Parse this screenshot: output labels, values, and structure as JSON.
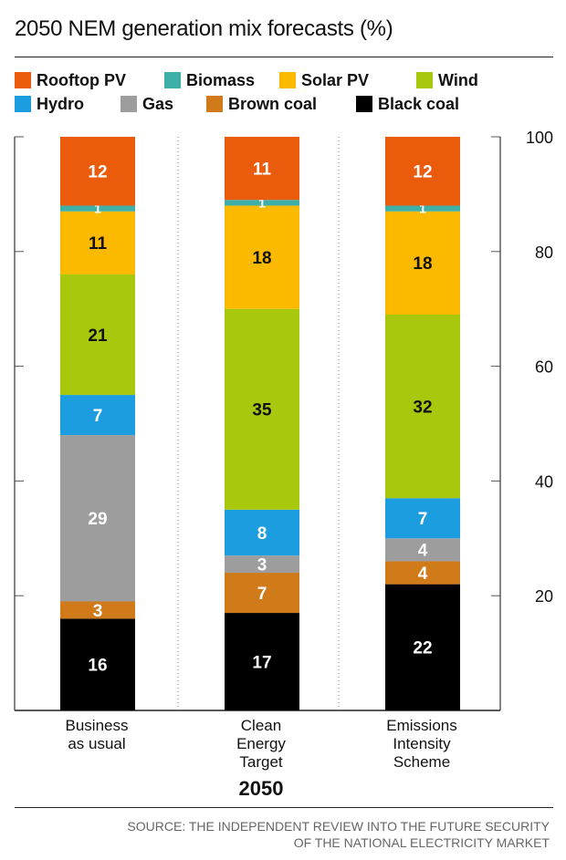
{
  "chart_data": {
    "type": "bar",
    "stacked": true,
    "title": "2050 NEM generation mix forecasts (%)",
    "categories": [
      "Business\nas usual",
      "Clean\nEnergy\nTarget",
      "Emissions\nIntensity\nScheme"
    ],
    "group_label": "2050",
    "ylim": [
      0,
      100
    ],
    "yticks": [
      "20",
      "40",
      "60",
      "80",
      "100"
    ],
    "ytick_values": [
      20,
      40,
      60,
      80,
      100
    ],
    "grid": true,
    "legend_position": "top",
    "series": [
      {
        "name": "Black coal",
        "color": "#000000",
        "label_color": "#ffffff",
        "values": [
          16,
          17,
          22
        ]
      },
      {
        "name": "Brown coal",
        "color": "#d07a1a",
        "label_color": "#ffffff",
        "values": [
          3,
          7,
          4
        ]
      },
      {
        "name": "Gas",
        "color": "#9d9d9d",
        "label_color": "#ffffff",
        "values": [
          29,
          3,
          4
        ]
      },
      {
        "name": "Hydro",
        "color": "#1c9de0",
        "label_color": "#ffffff",
        "values": [
          7,
          8,
          7
        ]
      },
      {
        "name": "Wind",
        "color": "#a8c80e",
        "label_color": "#111111",
        "values": [
          21,
          35,
          32
        ]
      },
      {
        "name": "Solar PV",
        "color": "#fbba00",
        "label_color": "#111111",
        "values": [
          11,
          18,
          18
        ]
      },
      {
        "name": "Biomass",
        "color": "#3fb0a8",
        "label_color": "#ffffff",
        "values": [
          1,
          1,
          1
        ]
      },
      {
        "name": "Rooftop PV",
        "color": "#ea5b0c",
        "label_color": "#ffffff",
        "values": [
          12,
          11,
          12
        ]
      }
    ],
    "legend_order": [
      "Rooftop PV",
      "Biomass",
      "Solar PV",
      "Wind",
      "Hydro",
      "Gas",
      "Brown coal",
      "Black coal"
    ]
  },
  "source": "SOURCE: THE INDEPENDENT REVIEW INTO THE FUTURE SECURITY\nOF THE NATIONAL ELECTRICITY MARKET"
}
